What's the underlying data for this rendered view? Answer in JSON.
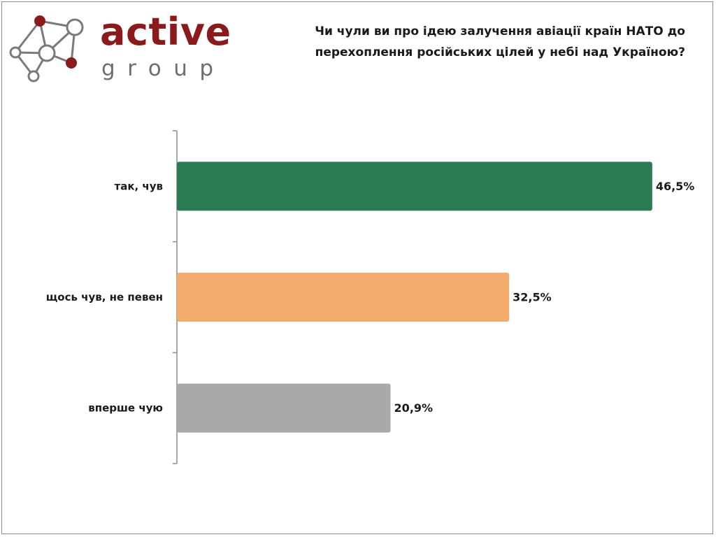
{
  "logo": {
    "word": "active",
    "sub": "group"
  },
  "colors": {
    "brand": "#8b1a1a",
    "logo_sub": "#6e6e6e",
    "axis": "#8c8c8c"
  },
  "chart_data": {
    "type": "bar",
    "orientation": "horizontal",
    "title": "Чи чули ви про ідею залучення авіації країн НАТО до перехоплення російських цілей у небі над Україною?",
    "categories": [
      "так, чув",
      "щось чув, не певен",
      "вперше чую"
    ],
    "values": [
      46.5,
      32.5,
      20.9
    ],
    "value_labels": [
      "46,5%",
      "32,5%",
      "20,9%"
    ],
    "bar_colors": [
      "#2a7a52",
      "#f2ab6b",
      "#a9a9a9"
    ],
    "xlim": [
      0,
      50
    ],
    "grid": false,
    "legend": "none"
  }
}
